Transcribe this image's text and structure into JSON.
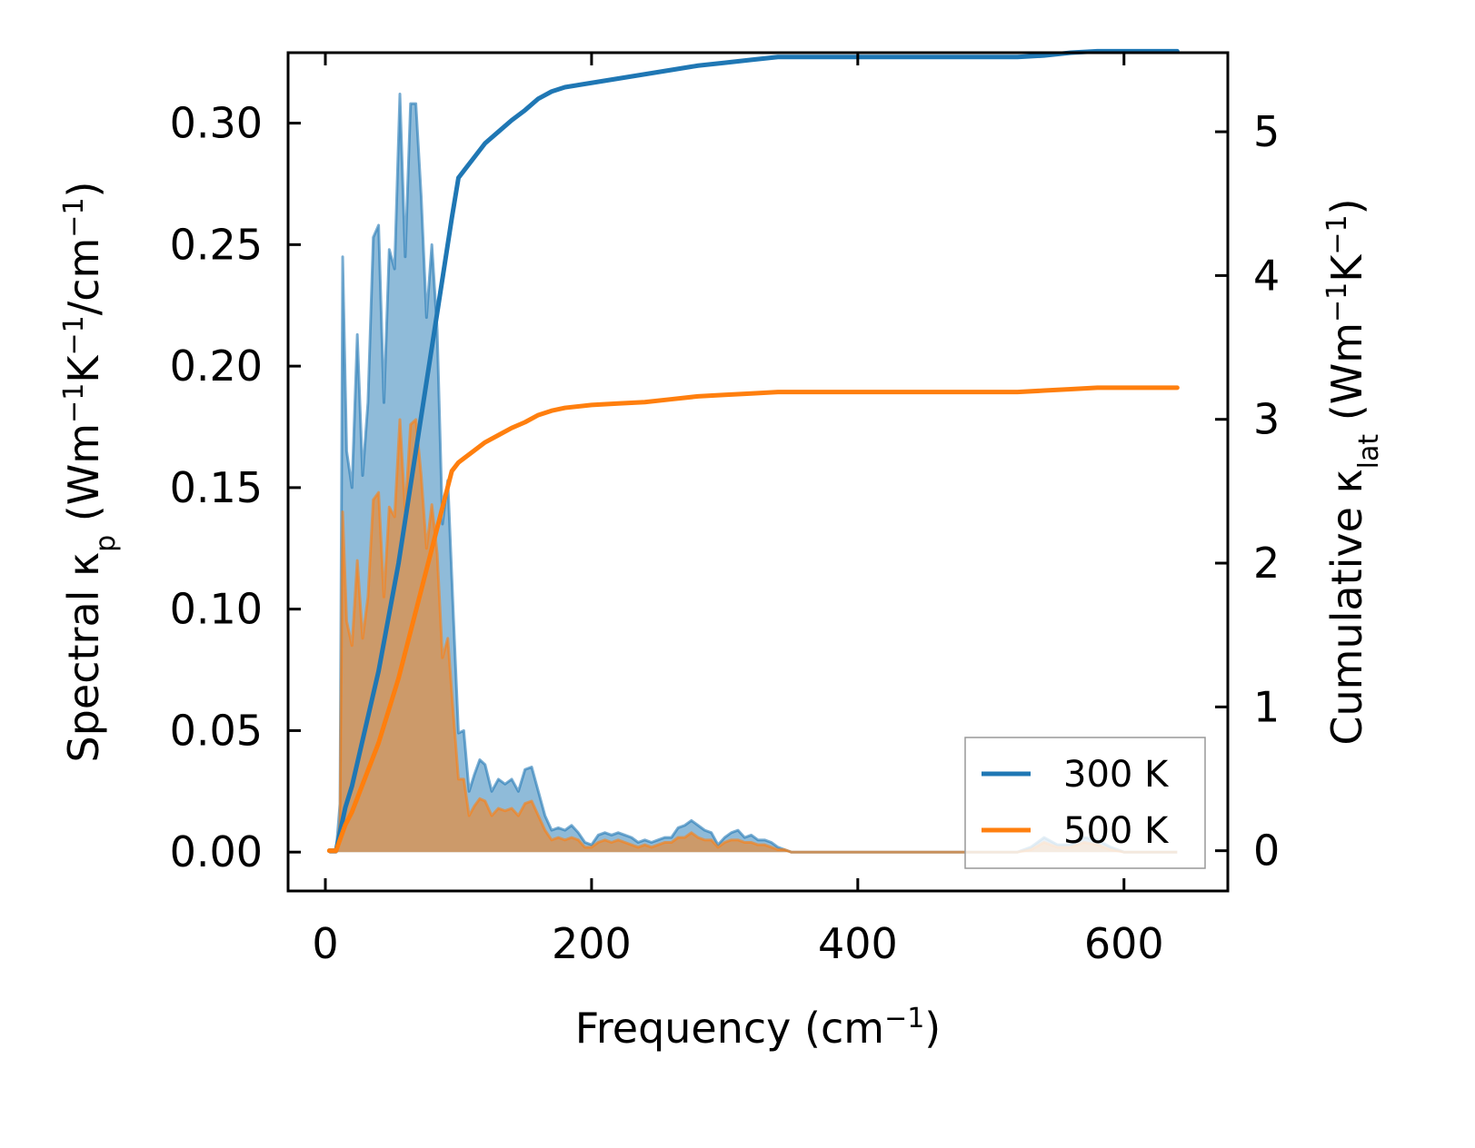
{
  "chart_data": {
    "type": "line",
    "title": "",
    "xlabel": "Frequency (cm⁻¹)",
    "ylabel": "Spectral κp (Wm⁻¹K⁻¹/cm⁻¹)",
    "ylabel_parts": [
      "Spectral κ",
      "p",
      " (Wm",
      "−1",
      "K",
      "−1",
      "/cm",
      "−1",
      ")"
    ],
    "y2label": "Cumulative κlat (Wm⁻¹K⁻¹)",
    "y2label_parts": [
      "Cumulative κ",
      "lat",
      " (Wm",
      "−1",
      "K",
      "−1",
      ")"
    ],
    "xlabel_parts": [
      "Frequency (cm",
      "−1",
      ")"
    ],
    "xlim": [
      -28,
      678
    ],
    "ylim": [
      -0.016,
      0.329
    ],
    "y2lim": [
      -0.28,
      5.55
    ],
    "xticks": [
      0,
      200,
      400,
      600
    ],
    "xtick_labels": [
      "0",
      "200",
      "400",
      "600"
    ],
    "yticks": [
      0.0,
      0.05,
      0.1,
      0.15,
      0.2,
      0.25,
      0.3
    ],
    "ytick_labels": [
      "0.00",
      "0.05",
      "0.10",
      "0.15",
      "0.20",
      "0.25",
      "0.30"
    ],
    "y2ticks": [
      0,
      1,
      2,
      3,
      4,
      5
    ],
    "y2tick_labels": [
      "0",
      "1",
      "2",
      "3",
      "4",
      "5"
    ],
    "legend": {
      "position": "lower-right",
      "entries": [
        "300 K",
        "500 K"
      ]
    },
    "series": [
      {
        "name": "300 K",
        "color": "#1f77b4",
        "spectral": {
          "x": [
            3,
            8,
            11,
            13,
            16,
            20,
            24,
            28,
            32,
            36,
            40,
            44,
            48,
            52,
            56,
            60,
            64,
            68,
            72,
            76,
            80,
            84,
            88,
            92,
            96,
            100,
            104,
            108,
            112,
            116,
            120,
            125,
            130,
            135,
            140,
            145,
            150,
            155,
            160,
            165,
            170,
            175,
            180,
            185,
            190,
            195,
            200,
            205,
            210,
            215,
            220,
            225,
            230,
            235,
            240,
            245,
            250,
            255,
            260,
            265,
            270,
            275,
            280,
            285,
            290,
            295,
            300,
            305,
            310,
            315,
            320,
            325,
            330,
            335,
            340,
            345,
            350,
            400,
            500,
            520,
            530,
            540,
            550,
            560,
            570,
            580,
            590,
            600,
            640
          ],
          "y": [
            0.0,
            0.0,
            0.02,
            0.245,
            0.165,
            0.15,
            0.213,
            0.155,
            0.185,
            0.253,
            0.258,
            0.185,
            0.248,
            0.24,
            0.312,
            0.245,
            0.308,
            0.308,
            0.27,
            0.22,
            0.25,
            0.215,
            0.135,
            0.153,
            0.1,
            0.049,
            0.05,
            0.025,
            0.032,
            0.038,
            0.036,
            0.025,
            0.03,
            0.028,
            0.03,
            0.025,
            0.034,
            0.035,
            0.025,
            0.015,
            0.009,
            0.01,
            0.009,
            0.011,
            0.008,
            0.004,
            0.003,
            0.007,
            0.008,
            0.007,
            0.008,
            0.007,
            0.006,
            0.004,
            0.005,
            0.004,
            0.005,
            0.006,
            0.006,
            0.01,
            0.011,
            0.013,
            0.011,
            0.009,
            0.008,
            0.003,
            0.006,
            0.008,
            0.009,
            0.006,
            0.007,
            0.005,
            0.005,
            0.004,
            0.002,
            0.001,
            0.0,
            0.0,
            0.0,
            0.0,
            0.002,
            0.006,
            0.003,
            0.003,
            0.006,
            0.005,
            0.002,
            0.0,
            0.0
          ]
        },
        "cumulative": {
          "x": [
            3,
            8,
            15,
            20,
            25,
            30,
            35,
            40,
            45,
            50,
            55,
            60,
            65,
            70,
            75,
            80,
            85,
            90,
            95,
            100,
            110,
            120,
            130,
            140,
            150,
            160,
            170,
            180,
            200,
            220,
            240,
            260,
            280,
            300,
            320,
            340,
            360,
            400,
            500,
            520,
            540,
            560,
            580,
            600,
            640
          ],
          "y": [
            0.0,
            0.0,
            0.3,
            0.45,
            0.65,
            0.85,
            1.05,
            1.25,
            1.5,
            1.75,
            2.0,
            2.3,
            2.6,
            2.9,
            3.2,
            3.5,
            3.8,
            4.1,
            4.4,
            4.68,
            4.8,
            4.92,
            5.0,
            5.08,
            5.15,
            5.23,
            5.28,
            5.31,
            5.34,
            5.37,
            5.4,
            5.43,
            5.46,
            5.48,
            5.5,
            5.52,
            5.52,
            5.52,
            5.52,
            5.52,
            5.53,
            5.55,
            5.56,
            5.56,
            5.56
          ]
        }
      },
      {
        "name": "500 K",
        "color": "#ff7f0e",
        "spectral": {
          "x": [
            3,
            8,
            11,
            13,
            16,
            20,
            24,
            28,
            32,
            36,
            40,
            44,
            48,
            52,
            56,
            60,
            64,
            68,
            72,
            76,
            80,
            84,
            88,
            92,
            96,
            100,
            104,
            108,
            112,
            116,
            120,
            125,
            130,
            135,
            140,
            145,
            150,
            155,
            160,
            165,
            170,
            175,
            180,
            185,
            190,
            195,
            200,
            205,
            210,
            215,
            220,
            225,
            230,
            235,
            240,
            245,
            250,
            255,
            260,
            265,
            270,
            275,
            280,
            285,
            290,
            295,
            300,
            305,
            310,
            315,
            320,
            325,
            330,
            335,
            340,
            345,
            350,
            400,
            500,
            520,
            530,
            540,
            550,
            560,
            570,
            580,
            590,
            600,
            640
          ],
          "y": [
            0.0,
            0.0,
            0.012,
            0.14,
            0.095,
            0.085,
            0.12,
            0.088,
            0.105,
            0.145,
            0.148,
            0.105,
            0.142,
            0.138,
            0.178,
            0.14,
            0.176,
            0.178,
            0.155,
            0.125,
            0.143,
            0.123,
            0.08,
            0.088,
            0.058,
            0.03,
            0.03,
            0.015,
            0.019,
            0.022,
            0.021,
            0.015,
            0.018,
            0.017,
            0.018,
            0.015,
            0.02,
            0.021,
            0.015,
            0.009,
            0.005,
            0.006,
            0.005,
            0.006,
            0.005,
            0.002,
            0.002,
            0.004,
            0.005,
            0.004,
            0.005,
            0.004,
            0.003,
            0.002,
            0.003,
            0.002,
            0.003,
            0.004,
            0.004,
            0.006,
            0.006,
            0.008,
            0.006,
            0.005,
            0.005,
            0.002,
            0.004,
            0.005,
            0.005,
            0.004,
            0.004,
            0.003,
            0.003,
            0.002,
            0.001,
            0.001,
            0.0,
            0.0,
            0.0,
            0.0,
            0.001,
            0.004,
            0.002,
            0.002,
            0.004,
            0.003,
            0.001,
            0.0,
            0.0
          ]
        },
        "cumulative": {
          "x": [
            3,
            8,
            15,
            20,
            25,
            30,
            35,
            40,
            45,
            50,
            55,
            60,
            65,
            70,
            75,
            80,
            85,
            90,
            95,
            100,
            110,
            120,
            130,
            140,
            150,
            160,
            170,
            180,
            200,
            220,
            240,
            260,
            280,
            300,
            320,
            340,
            360,
            400,
            500,
            520,
            540,
            560,
            580,
            600,
            640
          ],
          "y": [
            0.0,
            0.0,
            0.18,
            0.27,
            0.39,
            0.51,
            0.63,
            0.75,
            0.9,
            1.05,
            1.2,
            1.38,
            1.56,
            1.74,
            1.92,
            2.1,
            2.28,
            2.46,
            2.64,
            2.7,
            2.77,
            2.84,
            2.89,
            2.94,
            2.98,
            3.03,
            3.06,
            3.08,
            3.1,
            3.11,
            3.12,
            3.14,
            3.16,
            3.17,
            3.18,
            3.19,
            3.19,
            3.19,
            3.19,
            3.19,
            3.2,
            3.21,
            3.22,
            3.22,
            3.22
          ]
        }
      }
    ]
  }
}
